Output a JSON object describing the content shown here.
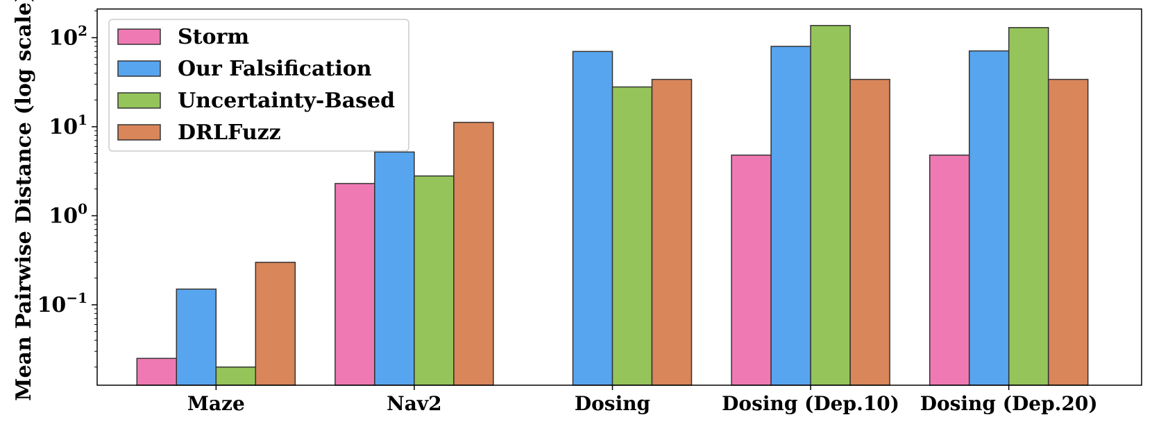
{
  "chart_data": {
    "type": "bar",
    "scale": "log",
    "ylabel": "Mean Pairwise Distance (log scale)",
    "xlabel": "",
    "title": "",
    "ylim": [
      0.0125,
      210
    ],
    "categories": [
      "Maze",
      "Nav2",
      "Dosing",
      "Dosing (Dep.10)",
      "Dosing (Dep.20)"
    ],
    "yticks": [
      {
        "base": "10",
        "exp": "−1",
        "value": 0.1
      },
      {
        "base": "10",
        "exp": "0",
        "value": 1
      },
      {
        "base": "10",
        "exp": "1",
        "value": 10
      },
      {
        "base": "10",
        "exp": "2",
        "value": 100
      }
    ],
    "legend_position": "upper-left",
    "series": [
      {
        "name": "Storm",
        "color": "#ef7ab3",
        "values": [
          0.025,
          2.3,
          null,
          4.8,
          4.8
        ]
      },
      {
        "name": "Our Falsification",
        "color": "#58a5ef",
        "values": [
          0.15,
          5.2,
          70,
          80,
          71
        ]
      },
      {
        "name": "Uncertainty-Based",
        "color": "#94c45a",
        "values": [
          0.02,
          2.8,
          28,
          137,
          130
        ]
      },
      {
        "name": "DRLFuzz",
        "color": "#d8865a",
        "values": [
          0.3,
          11.2,
          34,
          34,
          34
        ]
      }
    ]
  }
}
